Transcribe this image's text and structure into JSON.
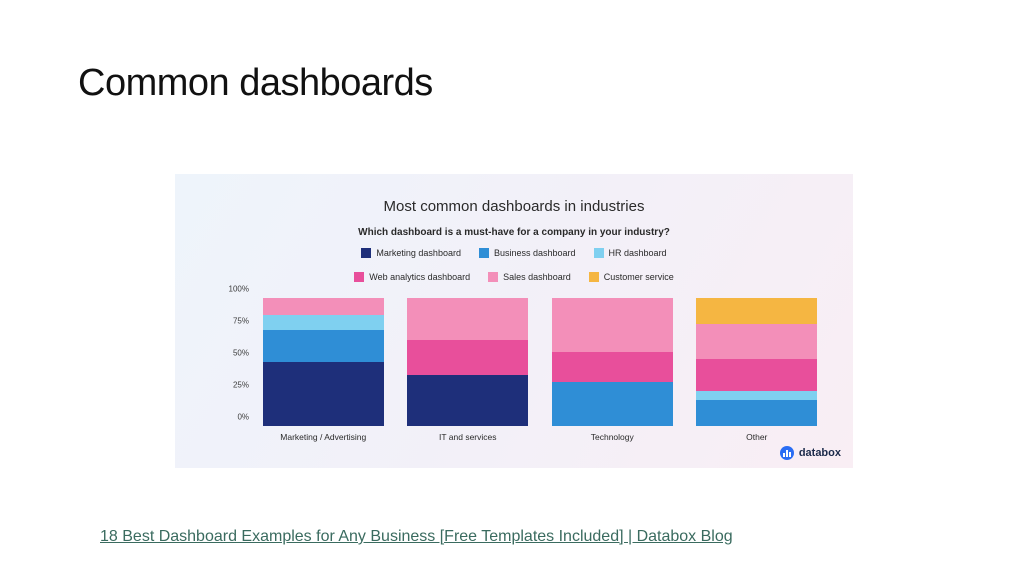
{
  "slide": {
    "title": "Common dashboards",
    "title_fontsize": 38,
    "title_color": "#111111"
  },
  "chart": {
    "type": "stacked-bar-100",
    "panel_gradient": [
      "#eef4fb",
      "#f3f0f8",
      "#f9eef4"
    ],
    "title": "Most common dashboards in industries",
    "title_fontsize": 15,
    "subtitle": "Which dashboard is a must-have for a company in your industry?",
    "subtitle_fontsize": 10,
    "subtitle_weight": 700,
    "series": [
      {
        "key": "marketing",
        "label": "Marketing dashboard",
        "color": "#1e2f7a"
      },
      {
        "key": "business",
        "label": "Business dashboard",
        "color": "#2f8ed6"
      },
      {
        "key": "hr",
        "label": "HR dashboard",
        "color": "#7fd0f0"
      },
      {
        "key": "web_analytics",
        "label": "Web analytics dashboard",
        "color": "#e84f9b"
      },
      {
        "key": "sales",
        "label": "Sales dashboard",
        "color": "#f38fb9"
      },
      {
        "key": "customer_service",
        "label": "Customer service",
        "color": "#f5b642"
      }
    ],
    "categories": [
      {
        "label": "Marketing / Advertising",
        "values": {
          "marketing": 50,
          "business": 25,
          "hr": 12,
          "web_analytics": 0,
          "sales": 13,
          "customer_service": 0
        }
      },
      {
        "label": "IT and services",
        "values": {
          "marketing": 40,
          "business": 0,
          "hr": 0,
          "web_analytics": 27,
          "sales": 33,
          "customer_service": 0
        }
      },
      {
        "label": "Technology",
        "values": {
          "marketing": 0,
          "business": 34,
          "hr": 0,
          "web_analytics": 24,
          "sales": 42,
          "customer_service": 0
        }
      },
      {
        "label": "Other",
        "values": {
          "marketing": 0,
          "business": 20,
          "hr": 7,
          "web_analytics": 25,
          "sales": 28,
          "customer_service": 20
        }
      }
    ],
    "y_axis": {
      "ticks": [
        0,
        25,
        50,
        75,
        100
      ],
      "labels": [
        "0%",
        "25%",
        "50%",
        "75%",
        "100%"
      ],
      "max": 100
    },
    "bar_width_pct": 21,
    "label_fontsize": 8.5,
    "text_color": "#2a2a2a"
  },
  "brand": {
    "name": "databox",
    "icon_bg": "#2a6df4",
    "text_color": "#1b2a4a"
  },
  "footer_link": {
    "text": "18 Best Dashboard Examples for Any Business [Free Templates Included] | Databox Blog",
    "color": "#3a6b5f",
    "fontsize": 16
  }
}
